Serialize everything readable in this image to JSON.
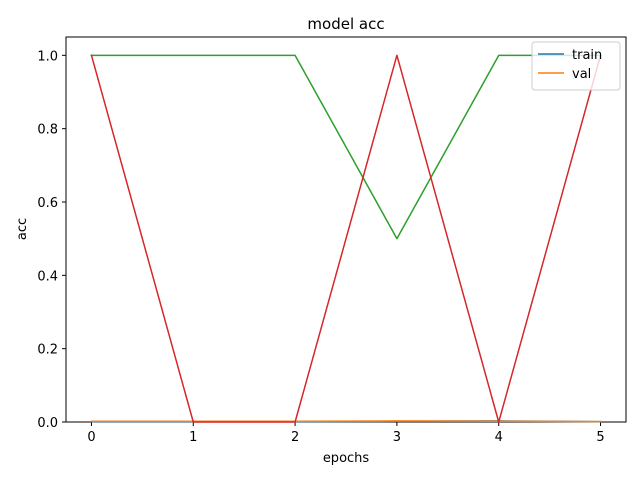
{
  "chart_data": {
    "type": "line",
    "title": "model acc",
    "xlabel": "epochs",
    "ylabel": "acc",
    "x": [
      0,
      1,
      2,
      3,
      4,
      5
    ],
    "xlim": [
      -0.25,
      5.25
    ],
    "ylim": [
      0,
      1.05
    ],
    "xticks": [
      "0",
      "1",
      "2",
      "3",
      "4",
      "5"
    ],
    "yticks": [
      "0.0",
      "0.2",
      "0.4",
      "0.6",
      "0.8",
      "1.0"
    ],
    "grid": false,
    "legend_position": "top-right",
    "series": [
      {
        "name": "train",
        "color": "#1f77b4",
        "values": [
          0.001,
          0.001,
          0.001,
          0.002,
          0.003,
          0.001
        ]
      },
      {
        "name": "val",
        "color": "#ff7f0e",
        "values": [
          0.002,
          0.002,
          0.002,
          0.003,
          0.002,
          0.001
        ]
      },
      {
        "color": "#2ca02c",
        "values": [
          1.0,
          1.0,
          1.0,
          0.5,
          1.0,
          1.0
        ]
      },
      {
        "color": "#d62728",
        "values": [
          1.0,
          0.0,
          0.0,
          1.0,
          0.0,
          1.0
        ]
      }
    ]
  }
}
